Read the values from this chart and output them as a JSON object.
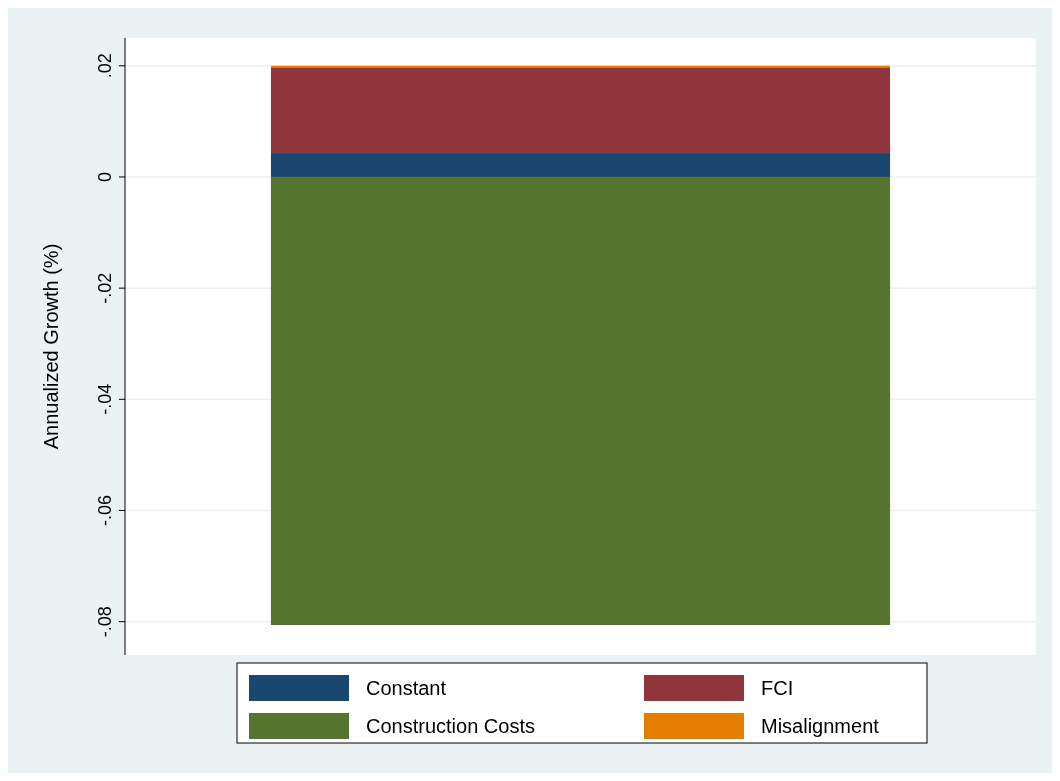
{
  "chart_data": {
    "type": "bar",
    "ylabel": "Annualized Growth (%)",
    "categories": [
      null
    ],
    "stacked": true,
    "series": [
      {
        "name": "Constant",
        "color": "#1a476f",
        "values": [
          0.0043
        ]
      },
      {
        "name": "FCI",
        "color": "#90353b",
        "values": [
          0.0153
        ]
      },
      {
        "name": "Construction Costs",
        "color": "#55752f",
        "values": [
          -0.0806
        ]
      },
      {
        "name": "Misalignment",
        "color": "#e37e00",
        "values": [
          0.0004
        ]
      }
    ],
    "ylim": [
      -0.086,
      0.025
    ],
    "yticks": [
      {
        "value": -0.08,
        "label": "-.08"
      },
      {
        "value": -0.06,
        "label": "-.06"
      },
      {
        "value": -0.04,
        "label": "-.04"
      },
      {
        "value": -0.02,
        "label": "-.02"
      },
      0,
      {
        "value": 0.02,
        "label": ".02"
      }
    ],
    "grid": "y",
    "legend": "bottom"
  }
}
